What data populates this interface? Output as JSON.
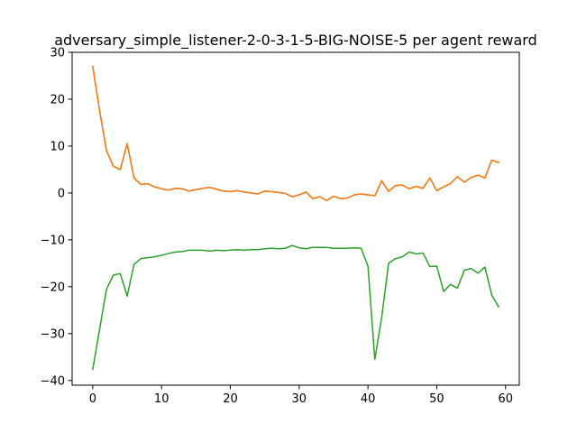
{
  "chart_data": {
    "type": "line",
    "title": "adversary_simple_listener-2-0-3-1-5-BIG-NOISE-5 per agent reward",
    "xlabel": "",
    "ylabel": "",
    "xlim": [
      -3,
      62
    ],
    "ylim": [
      -41,
      30
    ],
    "xticks": [
      0,
      10,
      20,
      30,
      40,
      50,
      60
    ],
    "yticks": [
      -40,
      -30,
      -20,
      -10,
      0,
      10,
      20,
      30
    ],
    "grid": false,
    "x": [
      0,
      1,
      2,
      3,
      4,
      5,
      6,
      7,
      8,
      9,
      10,
      11,
      12,
      13,
      14,
      15,
      16,
      17,
      18,
      19,
      20,
      21,
      22,
      23,
      24,
      25,
      26,
      27,
      28,
      29,
      30,
      31,
      32,
      33,
      34,
      35,
      36,
      37,
      38,
      39,
      40,
      41,
      42,
      43,
      44,
      45,
      46,
      47,
      48,
      49,
      50,
      51,
      52,
      53,
      54,
      55,
      56,
      57,
      58,
      59
    ],
    "series": [
      {
        "color": "#1f77b4",
        "values": [
          27,
          17.5,
          9,
          5.7,
          5,
          10.5,
          3.2,
          1.8,
          2,
          1.3,
          0.9,
          0.6,
          1,
          0.9,
          0.4,
          0.7,
          1,
          1.2,
          0.8,
          0.4,
          0.3,
          0.5,
          0.2,
          0,
          -0.2,
          0.4,
          0.3,
          0.1,
          -0.1,
          -0.8,
          -0.4,
          0.2,
          -1.2,
          -0.8,
          -1.6,
          -0.7,
          -1.2,
          -1.1,
          -0.4,
          -0.2,
          -0.4,
          -0.6,
          2.6,
          0.3,
          1.6,
          1.7,
          0.9,
          1.4,
          1,
          3.2,
          0.5,
          1.3,
          2,
          3.5,
          2.3,
          3.3,
          3.8,
          3.2,
          7,
          6.5
        ]
      },
      {
        "color": "#ff7f0e",
        "values": [
          27,
          17.5,
          9,
          5.7,
          5,
          10.5,
          3.2,
          1.8,
          2,
          1.3,
          0.9,
          0.6,
          1,
          0.9,
          0.4,
          0.7,
          1,
          1.2,
          0.8,
          0.4,
          0.3,
          0.5,
          0.2,
          0,
          -0.2,
          0.4,
          0.3,
          0.1,
          -0.1,
          -0.8,
          -0.4,
          0.2,
          -1.2,
          -0.8,
          -1.6,
          -0.7,
          -1.2,
          -1.1,
          -0.4,
          -0.2,
          -0.4,
          -0.6,
          2.6,
          0.3,
          1.6,
          1.7,
          0.9,
          1.4,
          1,
          3.2,
          0.5,
          1.3,
          2,
          3.5,
          2.3,
          3.3,
          3.8,
          3.2,
          7,
          6.5
        ]
      },
      {
        "color": "#2ca02c",
        "values": [
          -37.6,
          -29,
          -20.5,
          -17.5,
          -17.2,
          -22,
          -15.2,
          -14,
          -13.8,
          -13.6,
          -13.3,
          -12.9,
          -12.6,
          -12.5,
          -12.2,
          -12.2,
          -12.2,
          -12.4,
          -12.2,
          -12.3,
          -12.2,
          -12.1,
          -12.2,
          -12.1,
          -12.1,
          -11.9,
          -11.8,
          -11.9,
          -11.8,
          -11.2,
          -11.7,
          -11.9,
          -11.6,
          -11.6,
          -11.6,
          -11.8,
          -11.8,
          -11.8,
          -11.7,
          -11.8,
          -15.6,
          -35.5,
          -26.5,
          -15,
          -14,
          -13.6,
          -12.6,
          -13,
          -12.8,
          -15.7,
          -15.6,
          -21,
          -19.5,
          -20.3,
          -16.5,
          -16.1,
          -17.1,
          -15.8,
          -21.8,
          -24.3
        ]
      }
    ]
  }
}
